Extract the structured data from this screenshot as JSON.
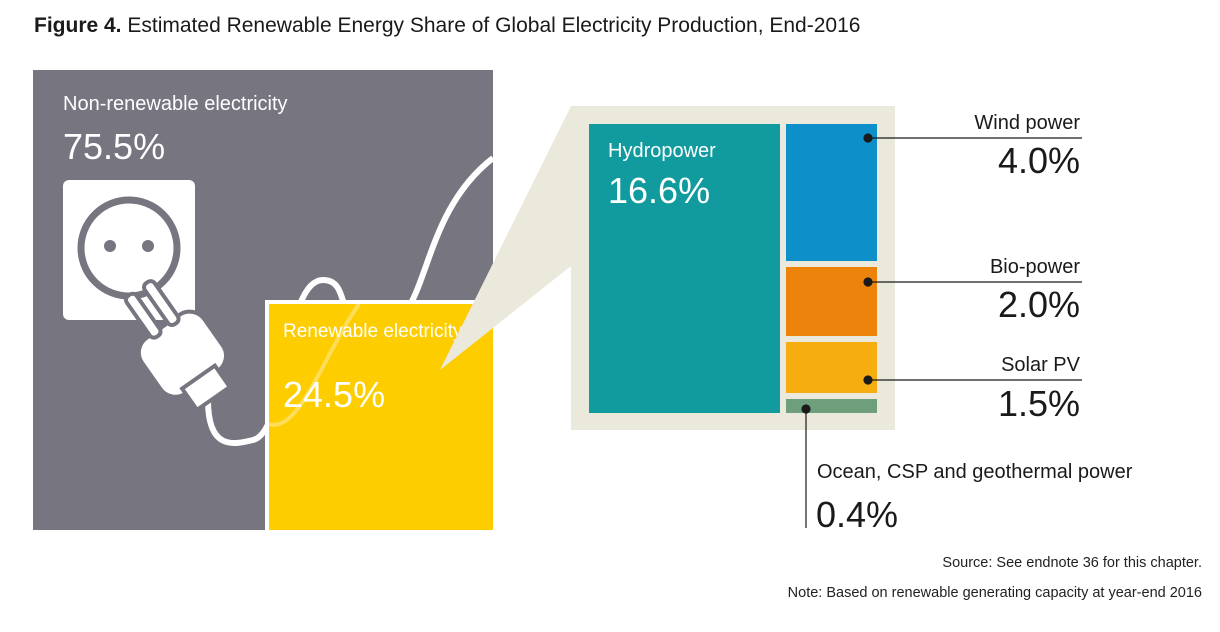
{
  "title": {
    "prefix": "Figure 4.",
    "text": "Estimated Renewable Energy Share of Global Electricity Production, End-2016"
  },
  "panels": {
    "nonrenewable": {
      "label": "Non-renewable electricity",
      "value": "75.5%"
    },
    "renewable": {
      "label": "Renewable electricity",
      "value": "24.5%"
    }
  },
  "chart_data": {
    "type": "treemap",
    "title": "Estimated Renewable Energy Share of Global Electricity Production, End-2016",
    "total": [
      {
        "name": "Non-renewable electricity",
        "value": 75.5,
        "label": "75.5%"
      },
      {
        "name": "Renewable electricity",
        "value": 24.5,
        "label": "24.5%"
      }
    ],
    "renewable_breakdown": [
      {
        "name": "Hydropower",
        "value": 16.6,
        "label": "16.6%",
        "color": "#119b9e"
      },
      {
        "name": "Wind power",
        "value": 4.0,
        "label": "4.0%",
        "color": "#0d90c9"
      },
      {
        "name": "Bio-power",
        "value": 2.0,
        "label": "2.0%",
        "color": "#ec830b"
      },
      {
        "name": "Solar PV",
        "value": 1.5,
        "label": "1.5%",
        "color": "#f6ad10"
      },
      {
        "name": "Ocean, CSP and geothermal power",
        "value": 0.4,
        "label": "0.4%",
        "color": "#6e9e7c"
      }
    ]
  },
  "colors": {
    "nonrenewable": "#767580",
    "renewable": "#fecd00",
    "treemap_bg": "#ebe8dc"
  },
  "footer": {
    "source": "Source: See endnote 36 for this chapter.",
    "note": "Note: Based on renewable generating capacity at year-end 2016"
  }
}
